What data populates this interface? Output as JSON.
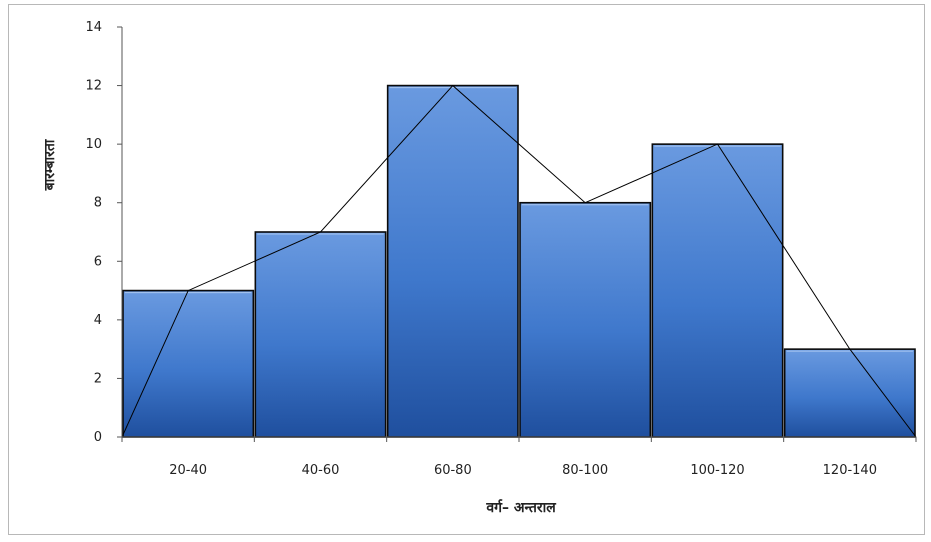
{
  "chart_data": {
    "type": "bar",
    "subtype": "histogram-with-frequency-polygon",
    "title": "",
    "xlabel": "वर्ग– अन्तराल",
    "ylabel": "बारम्बारता",
    "categories": [
      "20-40",
      "40-60",
      "60-80",
      "80-100",
      "100-120",
      "120-140"
    ],
    "values": [
      5,
      7,
      12,
      8,
      10,
      3
    ],
    "polygon": {
      "values": [
        0,
        5,
        7,
        12,
        8,
        10,
        3,
        0
      ]
    },
    "ylim": [
      0,
      14
    ],
    "yticks": [
      0,
      2,
      4,
      6,
      8,
      10,
      12,
      14
    ],
    "grid": false,
    "legend": "none",
    "colors": {
      "bar_light": "#6a9ae0",
      "bar_mid": "#3f78cc",
      "bar_dark": "#1f4f9e",
      "bar_edge": "#0a0a0a",
      "polygon": "#000000",
      "axis": "#555555"
    }
  }
}
